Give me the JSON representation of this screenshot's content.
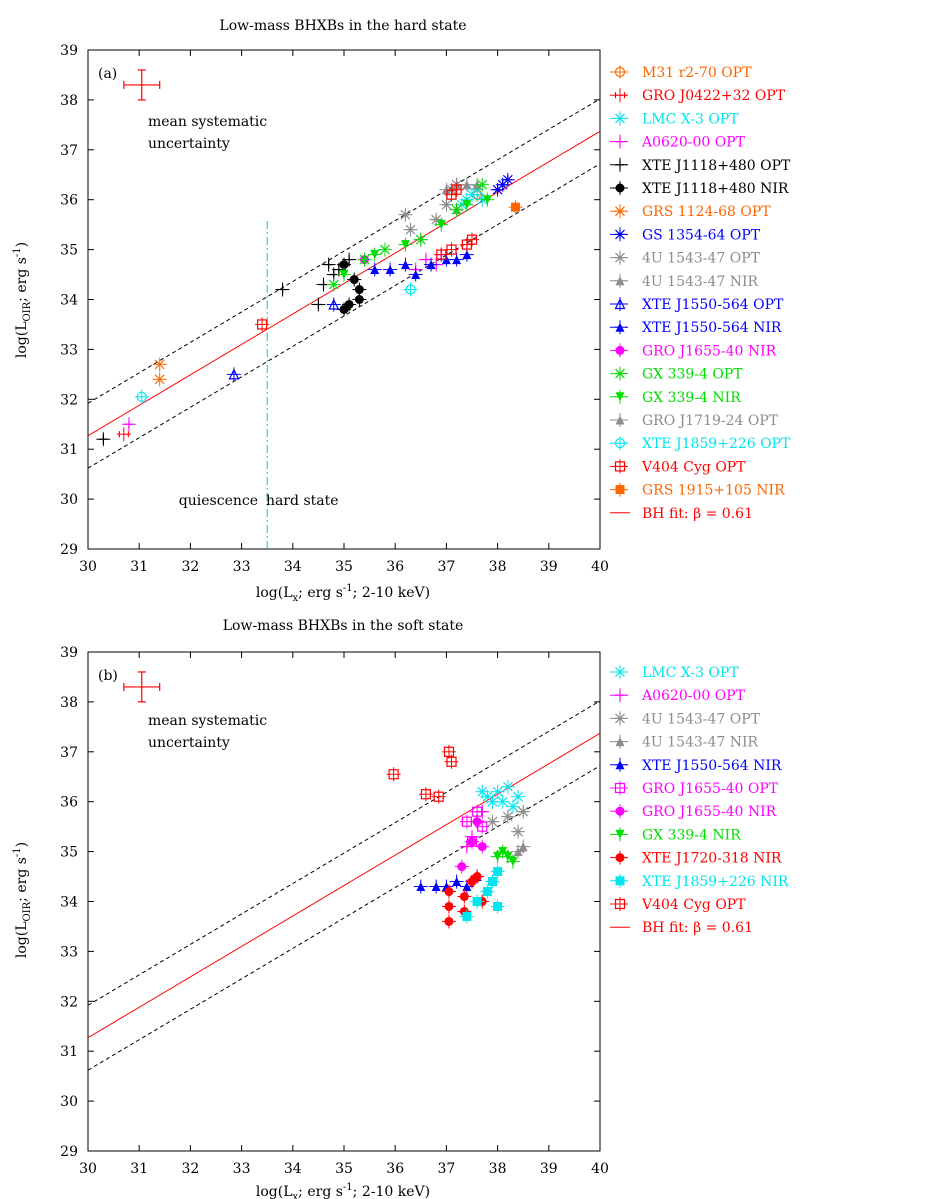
{
  "chart_data": [
    {
      "type": "scatter",
      "panel_label": "(a)",
      "title": "Low-mass BHXBs in the hard state",
      "xlabel": "log(L",
      "xlabel_sub": "x",
      "xlabel_rest": "; erg s",
      "xlabel_sup": "-1",
      "xlabel_end": "; 2-10 keV)",
      "ylabel": "log(L",
      "ylabel_sub": "OIR",
      "ylabel_rest": "; erg s",
      "ylabel_sup": "-1",
      "ylabel_end": ")",
      "xlim": [
        30,
        40
      ],
      "ylim": [
        29,
        39
      ],
      "xticks": [
        "30",
        "31",
        "32",
        "33",
        "34",
        "35",
        "36",
        "37",
        "38",
        "39",
        "40"
      ],
      "yticks": [
        "29",
        "30",
        "31",
        "32",
        "33",
        "34",
        "35",
        "36",
        "37",
        "38",
        "39"
      ],
      "fit": {
        "label": "BH fit: β = 0.61",
        "slope": 0.61,
        "intercept": 31.27,
        "offset": 0.65,
        "color": "#ff0000"
      },
      "systematic": {
        "x": 31.05,
        "y": 38.3,
        "xerr": 0.35,
        "yerr": 0.3,
        "label_line1": "mean systematic",
        "label_line2": "uncertainty"
      },
      "divider": {
        "x": 33.5,
        "ymin": 29,
        "ymax": 35.6,
        "left_label": "quiescence",
        "right_label": "hard state"
      },
      "series": [
        {
          "name": "M31 r2-70",
          "band": "OPT",
          "color": "#ff6600",
          "marker": "circle-open",
          "points": [
            [
              37.6,
              36.1
            ]
          ]
        },
        {
          "name": "GRO J0422+32",
          "band": "OPT",
          "color": "#ff0000",
          "marker": "errbar",
          "points": [
            [
              30.7,
              31.3
            ]
          ]
        },
        {
          "name": "LMC X-3",
          "band": "OPT",
          "color": "#00e5ee",
          "marker": "x",
          "points": [
            [
              37.4,
              36.0
            ],
            [
              37.5,
              36.1
            ],
            [
              37.6,
              36.2
            ],
            [
              37.3,
              35.9
            ],
            [
              37.7,
              36.0
            ]
          ]
        },
        {
          "name": "A0620-00",
          "band": "OPT",
          "color": "#ff00ff",
          "marker": "plus",
          "points": [
            [
              30.8,
              31.5
            ],
            [
              36.6,
              34.8
            ],
            [
              36.8,
              34.7
            ],
            [
              36.4,
              34.6
            ],
            [
              36.9,
              34.9
            ]
          ]
        },
        {
          "name": "XTE J1118+480",
          "band": "OPT",
          "color": "#000000",
          "marker": "plus",
          "points": [
            [
              30.3,
              31.2
            ],
            [
              33.8,
              34.2
            ],
            [
              34.5,
              33.9
            ],
            [
              34.6,
              34.3
            ],
            [
              34.9,
              34.6
            ],
            [
              35.1,
              34.8
            ],
            [
              34.8,
              34.5
            ],
            [
              34.7,
              34.7
            ]
          ]
        },
        {
          "name": "XTE J1118+480",
          "band": "NIR",
          "color": "#000000",
          "marker": "dot",
          "points": [
            [
              35.0,
              33.8
            ],
            [
              35.1,
              33.9
            ],
            [
              35.3,
              34.2
            ],
            [
              35.2,
              34.4
            ],
            [
              35.0,
              34.7
            ],
            [
              35.3,
              34.0
            ]
          ]
        },
        {
          "name": "GRS 1124-68",
          "band": "OPT",
          "color": "#ff6600",
          "marker": "x",
          "points": [
            [
              31.4,
              32.7
            ],
            [
              31.4,
              32.4
            ]
          ]
        },
        {
          "name": "GS 1354-64",
          "band": "OPT",
          "color": "#0000ff",
          "marker": "star",
          "points": [
            [
              38.1,
              36.3
            ],
            [
              38.2,
              36.4
            ],
            [
              38.0,
              36.2
            ]
          ]
        },
        {
          "name": "4U 1543-47",
          "band": "OPT",
          "color": "#8c8c8c",
          "marker": "star",
          "points": [
            [
              36.2,
              35.7
            ],
            [
              36.3,
              35.4
            ],
            [
              36.5,
              35.2
            ],
            [
              36.8,
              35.6
            ],
            [
              37.1,
              36.2
            ],
            [
              37.2,
              36.3
            ],
            [
              37.0,
              35.9
            ]
          ]
        },
        {
          "name": "4U 1543-47",
          "band": "NIR",
          "color": "#8c8c8c",
          "marker": "triangle",
          "points": [
            [
              37.2,
              35.8
            ],
            [
              37.4,
              36.3
            ],
            [
              37.6,
              36.3
            ]
          ]
        },
        {
          "name": "XTE J1550-564",
          "band": "OPT",
          "color": "#0000ff",
          "marker": "triangle-open",
          "points": [
            [
              32.85,
              32.5
            ],
            [
              34.8,
              33.9
            ]
          ]
        },
        {
          "name": "XTE J1550-564",
          "band": "NIR",
          "color": "#0000ff",
          "marker": "triangle",
          "points": [
            [
              35.6,
              34.6
            ],
            [
              35.9,
              34.6
            ],
            [
              36.2,
              34.7
            ],
            [
              36.4,
              34.5
            ],
            [
              36.7,
              34.7
            ],
            [
              37.0,
              34.8
            ],
            [
              37.2,
              34.8
            ],
            [
              37.4,
              34.9
            ]
          ]
        },
        {
          "name": "GRO J1655-40",
          "band": "NIR",
          "color": "#ff00ff",
          "marker": "dot",
          "points": [
            [
              35.4,
              34.8
            ]
          ]
        },
        {
          "name": "GX 339-4",
          "band": "OPT",
          "color": "#00dd00",
          "marker": "x",
          "points": [
            [
              34.8,
              34.3
            ],
            [
              35.4,
              34.8
            ],
            [
              35.8,
              35.0
            ],
            [
              36.5,
              35.2
            ],
            [
              37.2,
              35.8
            ],
            [
              37.7,
              36.3
            ]
          ]
        },
        {
          "name": "GX 339-4",
          "band": "NIR",
          "color": "#00dd00",
          "marker": "tri-down",
          "points": [
            [
              35.0,
              34.5
            ],
            [
              35.6,
              34.9
            ],
            [
              36.2,
              35.1
            ],
            [
              36.9,
              35.5
            ],
            [
              37.4,
              35.9
            ],
            [
              37.8,
              36.0
            ]
          ]
        },
        {
          "name": "GRO J1719-24",
          "band": "OPT",
          "color": "#8c8c8c",
          "marker": "triangle",
          "points": [
            [
              37.0,
              36.2
            ],
            [
              37.2,
              36.3
            ]
          ]
        },
        {
          "name": "XTE J1859+226",
          "band": "OPT",
          "color": "#00e5ee",
          "marker": "circle-open",
          "points": [
            [
              31.05,
              32.05
            ],
            [
              36.3,
              34.2
            ]
          ]
        },
        {
          "name": "V404 Cyg",
          "band": "OPT",
          "color": "#ff0000",
          "marker": "square-open",
          "points": [
            [
              33.4,
              33.5
            ],
            [
              36.9,
              34.9
            ],
            [
              37.1,
              35.0
            ],
            [
              37.4,
              35.1
            ],
            [
              37.5,
              35.2
            ],
            [
              37.1,
              36.1
            ],
            [
              37.2,
              36.2
            ]
          ]
        },
        {
          "name": "GRS 1915+105",
          "band": "NIR",
          "color": "#ff6600",
          "marker": "square",
          "points": [
            [
              38.35,
              35.85
            ]
          ]
        }
      ]
    },
    {
      "type": "scatter",
      "panel_label": "(b)",
      "title": "Low-mass BHXBs in the soft state",
      "xlabel": "log(L",
      "xlabel_sub": "x",
      "xlabel_rest": "; erg s",
      "xlabel_sup": "-1",
      "xlabel_end": "; 2-10 keV)",
      "ylabel": "log(L",
      "ylabel_sub": "OIR",
      "ylabel_rest": "; erg s",
      "ylabel_sup": "-1",
      "ylabel_end": ")",
      "xlim": [
        30,
        40
      ],
      "ylim": [
        29,
        39
      ],
      "xticks": [
        "30",
        "31",
        "32",
        "33",
        "34",
        "35",
        "36",
        "37",
        "38",
        "39",
        "40"
      ],
      "yticks": [
        "29",
        "30",
        "31",
        "32",
        "33",
        "34",
        "35",
        "36",
        "37",
        "38",
        "39"
      ],
      "fit": {
        "label": "BH fit: β = 0.61",
        "slope": 0.61,
        "intercept": 31.27,
        "offset": 0.65,
        "color": "#ff0000"
      },
      "systematic": {
        "x": 31.05,
        "y": 38.3,
        "xerr": 0.35,
        "yerr": 0.3,
        "label_line1": "mean systematic",
        "label_line2": "uncertainty"
      },
      "series": [
        {
          "name": "LMC X-3",
          "band": "OPT",
          "color": "#00e5ee",
          "marker": "x",
          "points": [
            [
              37.8,
              36.1
            ],
            [
              38.0,
              36.2
            ],
            [
              38.2,
              36.3
            ],
            [
              38.4,
              36.1
            ],
            [
              37.9,
              36.0
            ],
            [
              38.3,
              35.9
            ],
            [
              37.7,
              36.2
            ],
            [
              38.1,
              36.0
            ]
          ]
        },
        {
          "name": "A0620-00",
          "band": "OPT",
          "color": "#ff00ff",
          "marker": "plus",
          "points": [
            [
              37.5,
              35.3
            ],
            [
              37.6,
              35.6
            ],
            [
              37.7,
              35.8
            ],
            [
              37.4,
              35.1
            ]
          ]
        },
        {
          "name": "4U 1543-47",
          "band": "OPT",
          "color": "#8c8c8c",
          "marker": "star",
          "points": [
            [
              37.9,
              35.6
            ],
            [
              38.2,
              35.7
            ],
            [
              38.4,
              35.4
            ],
            [
              38.5,
              35.8
            ]
          ]
        },
        {
          "name": "4U 1543-47",
          "band": "NIR",
          "color": "#8c8c8c",
          "marker": "triangle",
          "points": [
            [
              38.4,
              35.0
            ],
            [
              38.5,
              35.1
            ]
          ]
        },
        {
          "name": "XTE J1550-564",
          "band": "NIR",
          "color": "#0000ff",
          "marker": "triangle",
          "points": [
            [
              36.5,
              34.3
            ],
            [
              36.8,
              34.3
            ],
            [
              37.0,
              34.3
            ],
            [
              37.2,
              34.4
            ],
            [
              37.4,
              34.3
            ],
            [
              37.6,
              34.5
            ],
            [
              37.9,
              34.4
            ]
          ]
        },
        {
          "name": "GRO J1655-40",
          "band": "OPT",
          "color": "#ff00ff",
          "marker": "square-open",
          "points": [
            [
              37.4,
              35.6
            ],
            [
              37.5,
              35.2
            ],
            [
              37.6,
              35.8
            ],
            [
              37.7,
              35.5
            ]
          ]
        },
        {
          "name": "GRO J1655-40",
          "band": "NIR",
          "color": "#ff00ff",
          "marker": "dot",
          "points": [
            [
              37.3,
              34.7
            ],
            [
              37.5,
              35.2
            ],
            [
              37.7,
              35.1
            ],
            [
              37.6,
              35.6
            ]
          ]
        },
        {
          "name": "GX 339-4",
          "band": "NIR",
          "color": "#00dd00",
          "marker": "tri-down",
          "points": [
            [
              38.0,
              34.9
            ],
            [
              38.2,
              34.9
            ],
            [
              38.3,
              34.8
            ],
            [
              38.1,
              35.0
            ]
          ]
        },
        {
          "name": "XTE J1720-318",
          "band": "NIR",
          "color": "#ff0000",
          "marker": "dot",
          "points": [
            [
              37.05,
              33.6
            ],
            [
              37.05,
              33.9
            ],
            [
              37.05,
              34.2
            ],
            [
              37.35,
              33.8
            ],
            [
              37.35,
              34.1
            ],
            [
              37.5,
              34.4
            ],
            [
              37.7,
              34.0
            ],
            [
              37.6,
              34.5
            ]
          ]
        },
        {
          "name": "XTE J1859+226",
          "band": "NIR",
          "color": "#00e5ee",
          "marker": "square",
          "points": [
            [
              37.4,
              33.7
            ],
            [
              37.6,
              34.0
            ],
            [
              37.8,
              34.2
            ],
            [
              38.0,
              33.9
            ],
            [
              37.9,
              34.4
            ],
            [
              38.0,
              34.6
            ]
          ]
        },
        {
          "name": "V404 Cyg",
          "band": "OPT",
          "color": "#ff0000",
          "marker": "square-open",
          "points": [
            [
              35.97,
              36.55
            ],
            [
              36.6,
              36.15
            ],
            [
              36.85,
              36.1
            ],
            [
              37.05,
              37.0
            ],
            [
              37.1,
              36.8
            ]
          ]
        }
      ]
    }
  ]
}
